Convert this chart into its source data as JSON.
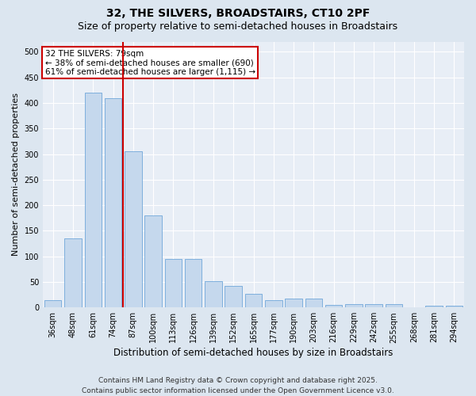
{
  "title_line1": "32, THE SILVERS, BROADSTAIRS, CT10 2PF",
  "title_line2": "Size of property relative to semi-detached houses in Broadstairs",
  "xlabel": "Distribution of semi-detached houses by size in Broadstairs",
  "ylabel": "Number of semi-detached properties",
  "categories": [
    "36sqm",
    "48sqm",
    "61sqm",
    "74sqm",
    "87sqm",
    "100sqm",
    "113sqm",
    "126sqm",
    "139sqm",
    "152sqm",
    "165sqm",
    "177sqm",
    "190sqm",
    "203sqm",
    "216sqm",
    "229sqm",
    "242sqm",
    "255sqm",
    "268sqm",
    "281sqm",
    "294sqm"
  ],
  "values": [
    14,
    135,
    420,
    410,
    305,
    180,
    95,
    95,
    52,
    42,
    26,
    15,
    18,
    18,
    5,
    6,
    6,
    7,
    1,
    4,
    3
  ],
  "bar_color": "#c5d8ed",
  "bar_edge_color": "#5b9bd5",
  "ref_line_color": "#cc0000",
  "ref_line_index": 3.5,
  "annotation_text": "32 THE SILVERS: 79sqm\n← 38% of semi-detached houses are smaller (690)\n61% of semi-detached houses are larger (1,115) →",
  "annotation_box_color": "#ffffff",
  "annotation_box_edge_color": "#cc0000",
  "ylim": [
    0,
    520
  ],
  "yticks": [
    0,
    50,
    100,
    150,
    200,
    250,
    300,
    350,
    400,
    450,
    500
  ],
  "footer": "Contains HM Land Registry data © Crown copyright and database right 2025.\nContains public sector information licensed under the Open Government Licence v3.0.",
  "background_color": "#dce6f0",
  "plot_bg_color": "#e8eef6",
  "grid_color": "#ffffff",
  "title_fontsize": 10,
  "subtitle_fontsize": 9,
  "tick_fontsize": 7,
  "ylabel_fontsize": 8,
  "xlabel_fontsize": 8.5,
  "footer_fontsize": 6.5,
  "annotation_fontsize": 7.5
}
